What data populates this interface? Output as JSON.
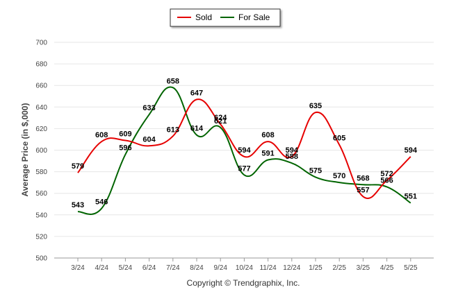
{
  "chart_data": {
    "type": "line",
    "ylabel": "Average Price (in $,000)",
    "ylim": [
      500,
      700
    ],
    "yticks": [
      500,
      520,
      540,
      560,
      580,
      600,
      620,
      640,
      660,
      680,
      700
    ],
    "categories": [
      "3/24",
      "4/24",
      "5/24",
      "6/24",
      "7/24",
      "8/24",
      "9/24",
      "10/24",
      "11/24",
      "12/24",
      "1/25",
      "2/25",
      "3/25",
      "4/25",
      "5/25"
    ],
    "series": [
      {
        "name": "Sold",
        "color": "#e60000",
        "values": [
          579,
          608,
          609,
          604,
          613,
          647,
          624,
          594,
          608,
          594,
          635,
          605,
          557,
          572,
          594
        ]
      },
      {
        "name": "For Sale",
        "color": "#006400",
        "values": [
          543,
          546,
          596,
          633,
          658,
          614,
          621,
          577,
          591,
          588,
          575,
          570,
          568,
          566,
          551
        ]
      }
    ],
    "grid": true,
    "legend_position": "top-center",
    "credit": "Copyright © Trendgraphix, Inc."
  }
}
